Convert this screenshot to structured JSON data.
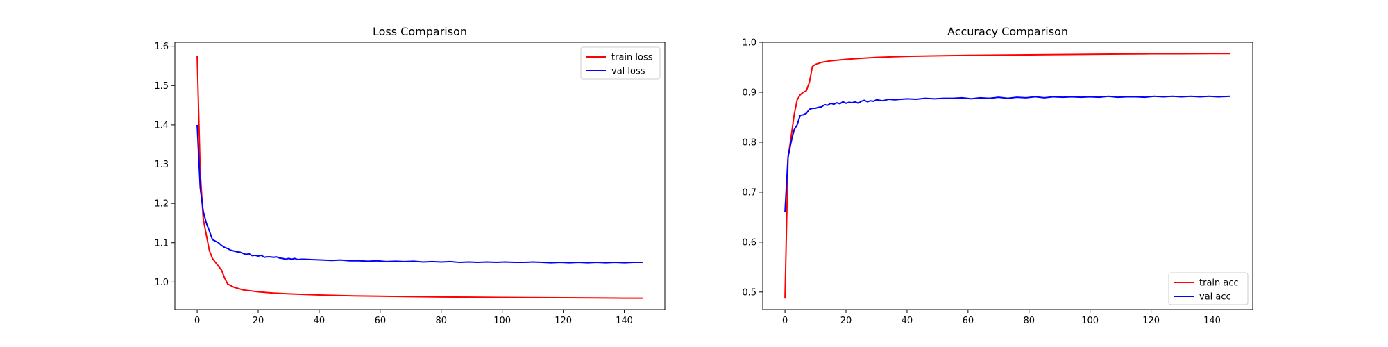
{
  "chart_data": [
    {
      "type": "line",
      "title": "Loss Comparison",
      "xlabel": "",
      "ylabel": "",
      "xlim": [
        -7.3,
        153.3
      ],
      "ylim": [
        0.93,
        1.61
      ],
      "xticks": [
        0,
        20,
        40,
        60,
        80,
        100,
        120,
        140
      ],
      "yticks": [
        1.0,
        1.1,
        1.2,
        1.3,
        1.4,
        1.5,
        1.6
      ],
      "grid": false,
      "legend_position": "top-right",
      "series": [
        {
          "name": "train loss",
          "color": "#ff0000",
          "points": [
            [
              0,
              1.575
            ],
            [
              1,
              1.28
            ],
            [
              2,
              1.16
            ],
            [
              3,
              1.12
            ],
            [
              4,
              1.08
            ],
            [
              5,
              1.06
            ],
            [
              6,
              1.05
            ],
            [
              7,
              1.04
            ],
            [
              8,
              1.03
            ],
            [
              9,
              1.01
            ],
            [
              10,
              0.995
            ],
            [
              12,
              0.987
            ],
            [
              15,
              0.98
            ],
            [
              20,
              0.975
            ],
            [
              25,
              0.972
            ],
            [
              30,
              0.97
            ],
            [
              40,
              0.967
            ],
            [
              50,
              0.965
            ],
            [
              60,
              0.964
            ],
            [
              70,
              0.963
            ],
            [
              80,
              0.962
            ],
            [
              90,
              0.9615
            ],
            [
              100,
              0.961
            ],
            [
              110,
              0.9605
            ],
            [
              120,
              0.96
            ],
            [
              130,
              0.9595
            ],
            [
              140,
              0.959
            ],
            [
              146,
              0.959
            ]
          ]
        },
        {
          "name": "val loss",
          "color": "#0000ff",
          "points": [
            [
              0,
              1.4
            ],
            [
              1,
              1.24
            ],
            [
              2,
              1.18
            ],
            [
              3,
              1.15
            ],
            [
              4,
              1.13
            ],
            [
              5,
              1.108
            ],
            [
              6,
              1.104
            ],
            [
              7,
              1.1
            ],
            [
              8,
              1.093
            ],
            [
              9,
              1.088
            ],
            [
              10,
              1.085
            ],
            [
              11,
              1.081
            ],
            [
              12,
              1.079
            ],
            [
              13,
              1.077
            ],
            [
              14,
              1.076
            ],
            [
              15,
              1.073
            ],
            [
              16,
              1.07
            ],
            [
              17,
              1.072
            ],
            [
              18,
              1.067
            ],
            [
              19,
              1.068
            ],
            [
              20,
              1.066
            ],
            [
              21,
              1.068
            ],
            [
              22,
              1.063
            ],
            [
              23,
              1.064
            ],
            [
              24,
              1.064
            ],
            [
              25,
              1.063
            ],
            [
              26,
              1.064
            ],
            [
              27,
              1.061
            ],
            [
              28,
              1.06
            ],
            [
              29,
              1.058
            ],
            [
              30,
              1.06
            ],
            [
              31,
              1.058
            ],
            [
              32,
              1.06
            ],
            [
              33,
              1.057
            ],
            [
              34,
              1.058
            ],
            [
              35,
              1.058
            ],
            [
              38,
              1.057
            ],
            [
              41,
              1.056
            ],
            [
              44,
              1.055
            ],
            [
              47,
              1.056
            ],
            [
              50,
              1.054
            ],
            [
              53,
              1.054
            ],
            [
              56,
              1.053
            ],
            [
              59,
              1.054
            ],
            [
              62,
              1.052
            ],
            [
              65,
              1.053
            ],
            [
              68,
              1.052
            ],
            [
              71,
              1.053
            ],
            [
              74,
              1.051
            ],
            [
              77,
              1.052
            ],
            [
              80,
              1.051
            ],
            [
              83,
              1.052
            ],
            [
              86,
              1.05
            ],
            [
              89,
              1.051
            ],
            [
              92,
              1.05
            ],
            [
              95,
              1.051
            ],
            [
              98,
              1.05
            ],
            [
              101,
              1.051
            ],
            [
              104,
              1.05
            ],
            [
              107,
              1.05
            ],
            [
              110,
              1.051
            ],
            [
              113,
              1.05
            ],
            [
              116,
              1.049
            ],
            [
              119,
              1.05
            ],
            [
              122,
              1.049
            ],
            [
              125,
              1.05
            ],
            [
              128,
              1.049
            ],
            [
              131,
              1.05
            ],
            [
              134,
              1.049
            ],
            [
              137,
              1.05
            ],
            [
              140,
              1.049
            ],
            [
              143,
              1.05
            ],
            [
              146,
              1.05
            ]
          ]
        }
      ]
    },
    {
      "type": "line",
      "title": "Accuracy Comparison",
      "xlabel": "",
      "ylabel": "",
      "xlim": [
        -7.3,
        153.3
      ],
      "ylim": [
        0.465,
        1.0
      ],
      "xticks": [
        0,
        20,
        40,
        60,
        80,
        100,
        120,
        140
      ],
      "yticks": [
        0.5,
        0.6,
        0.7,
        0.8,
        0.9,
        1.0
      ],
      "grid": false,
      "legend_position": "bottom-right",
      "series": [
        {
          "name": "train acc",
          "color": "#ff0000",
          "points": [
            [
              0,
              0.487
            ],
            [
              1,
              0.77
            ],
            [
              2,
              0.81
            ],
            [
              3,
              0.855
            ],
            [
              4,
              0.885
            ],
            [
              5,
              0.895
            ],
            [
              6,
              0.9
            ],
            [
              7,
              0.903
            ],
            [
              8,
              0.92
            ],
            [
              9,
              0.952
            ],
            [
              10,
              0.956
            ],
            [
              12,
              0.96
            ],
            [
              15,
              0.963
            ],
            [
              20,
              0.966
            ],
            [
              25,
              0.968
            ],
            [
              30,
              0.97
            ],
            [
              40,
              0.972
            ],
            [
              50,
              0.973
            ],
            [
              60,
              0.974
            ],
            [
              70,
              0.9745
            ],
            [
              80,
              0.975
            ],
            [
              90,
              0.9755
            ],
            [
              100,
              0.976
            ],
            [
              110,
              0.9765
            ],
            [
              120,
              0.977
            ],
            [
              130,
              0.977
            ],
            [
              140,
              0.9775
            ],
            [
              146,
              0.9775
            ]
          ]
        },
        {
          "name": "val acc",
          "color": "#0000ff",
          "points": [
            [
              0,
              0.66
            ],
            [
              1,
              0.77
            ],
            [
              2,
              0.8
            ],
            [
              3,
              0.825
            ],
            [
              4,
              0.835
            ],
            [
              5,
              0.854
            ],
            [
              6,
              0.855
            ],
            [
              7,
              0.858
            ],
            [
              8,
              0.866
            ],
            [
              9,
              0.868
            ],
            [
              10,
              0.868
            ],
            [
              11,
              0.87
            ],
            [
              12,
              0.871
            ],
            [
              13,
              0.875
            ],
            [
              14,
              0.874
            ],
            [
              15,
              0.878
            ],
            [
              16,
              0.876
            ],
            [
              17,
              0.879
            ],
            [
              18,
              0.877
            ],
            [
              19,
              0.881
            ],
            [
              20,
              0.878
            ],
            [
              21,
              0.88
            ],
            [
              22,
              0.879
            ],
            [
              23,
              0.881
            ],
            [
              24,
              0.878
            ],
            [
              25,
              0.882
            ],
            [
              26,
              0.884
            ],
            [
              27,
              0.881
            ],
            [
              28,
              0.883
            ],
            [
              29,
              0.882
            ],
            [
              30,
              0.885
            ],
            [
              32,
              0.883
            ],
            [
              34,
              0.886
            ],
            [
              36,
              0.885
            ],
            [
              38,
              0.886
            ],
            [
              40,
              0.887
            ],
            [
              43,
              0.886
            ],
            [
              46,
              0.888
            ],
            [
              49,
              0.887
            ],
            [
              52,
              0.888
            ],
            [
              55,
              0.888
            ],
            [
              58,
              0.889
            ],
            [
              61,
              0.887
            ],
            [
              64,
              0.889
            ],
            [
              67,
              0.888
            ],
            [
              70,
              0.89
            ],
            [
              73,
              0.888
            ],
            [
              76,
              0.89
            ],
            [
              79,
              0.889
            ],
            [
              82,
              0.891
            ],
            [
              85,
              0.889
            ],
            [
              88,
              0.891
            ],
            [
              91,
              0.89
            ],
            [
              94,
              0.891
            ],
            [
              97,
              0.89
            ],
            [
              100,
              0.891
            ],
            [
              103,
              0.89
            ],
            [
              106,
              0.892
            ],
            [
              109,
              0.89
            ],
            [
              112,
              0.891
            ],
            [
              115,
              0.891
            ],
            [
              118,
              0.89
            ],
            [
              121,
              0.892
            ],
            [
              124,
              0.891
            ],
            [
              127,
              0.892
            ],
            [
              130,
              0.891
            ],
            [
              133,
              0.892
            ],
            [
              136,
              0.891
            ],
            [
              139,
              0.892
            ],
            [
              142,
              0.891
            ],
            [
              146,
              0.892
            ]
          ]
        }
      ]
    }
  ]
}
